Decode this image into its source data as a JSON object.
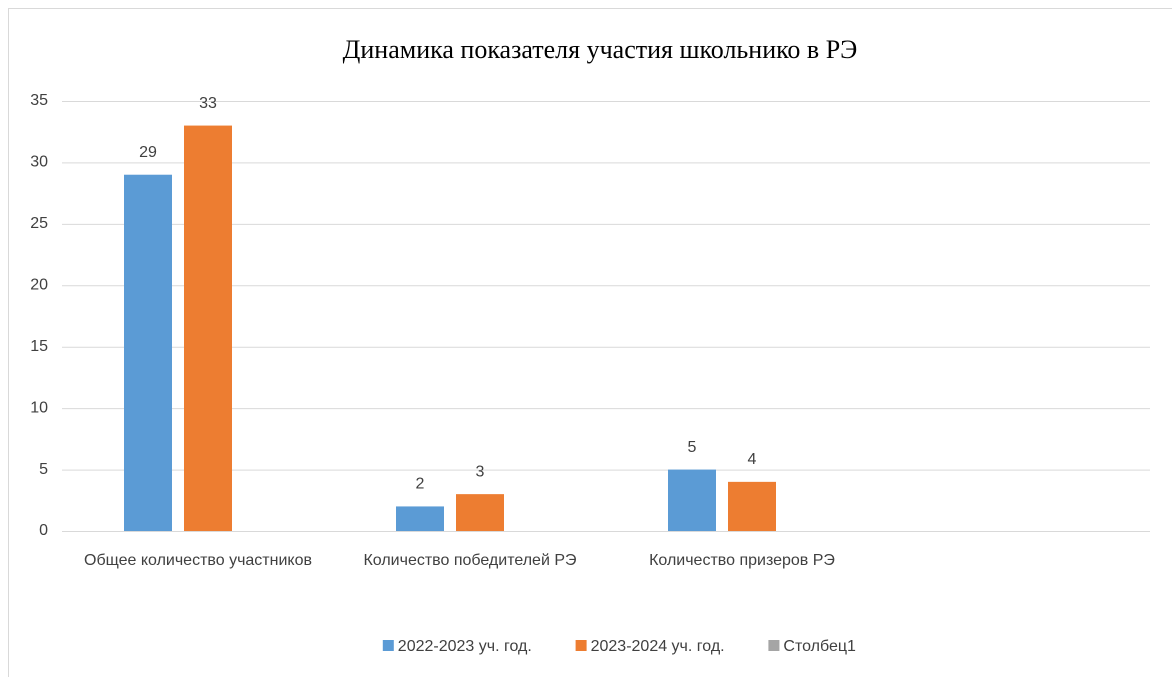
{
  "chart_data": {
    "type": "bar",
    "title": "Динамика показателя участия школьнико в РЭ",
    "categories": [
      "Общее количество участников",
      "Количество победителей РЭ",
      "Количество призеров РЭ",
      null
    ],
    "series": [
      {
        "name": "2022-2023 уч. год.",
        "color": "#5b9bd5",
        "values": [
          29,
          2,
          5,
          null
        ]
      },
      {
        "name": "2023-2024 уч. год.",
        "color": "#ed7d31",
        "values": [
          33,
          3,
          4,
          null
        ]
      },
      {
        "name": "Столбец1",
        "color": "#a5a5a5",
        "values": [
          null,
          null,
          null,
          null
        ]
      }
    ],
    "ylim": [
      0,
      35
    ],
    "yticks": [
      0,
      5,
      10,
      15,
      20,
      25,
      30,
      35
    ],
    "grid": true,
    "legend": "bottom"
  }
}
